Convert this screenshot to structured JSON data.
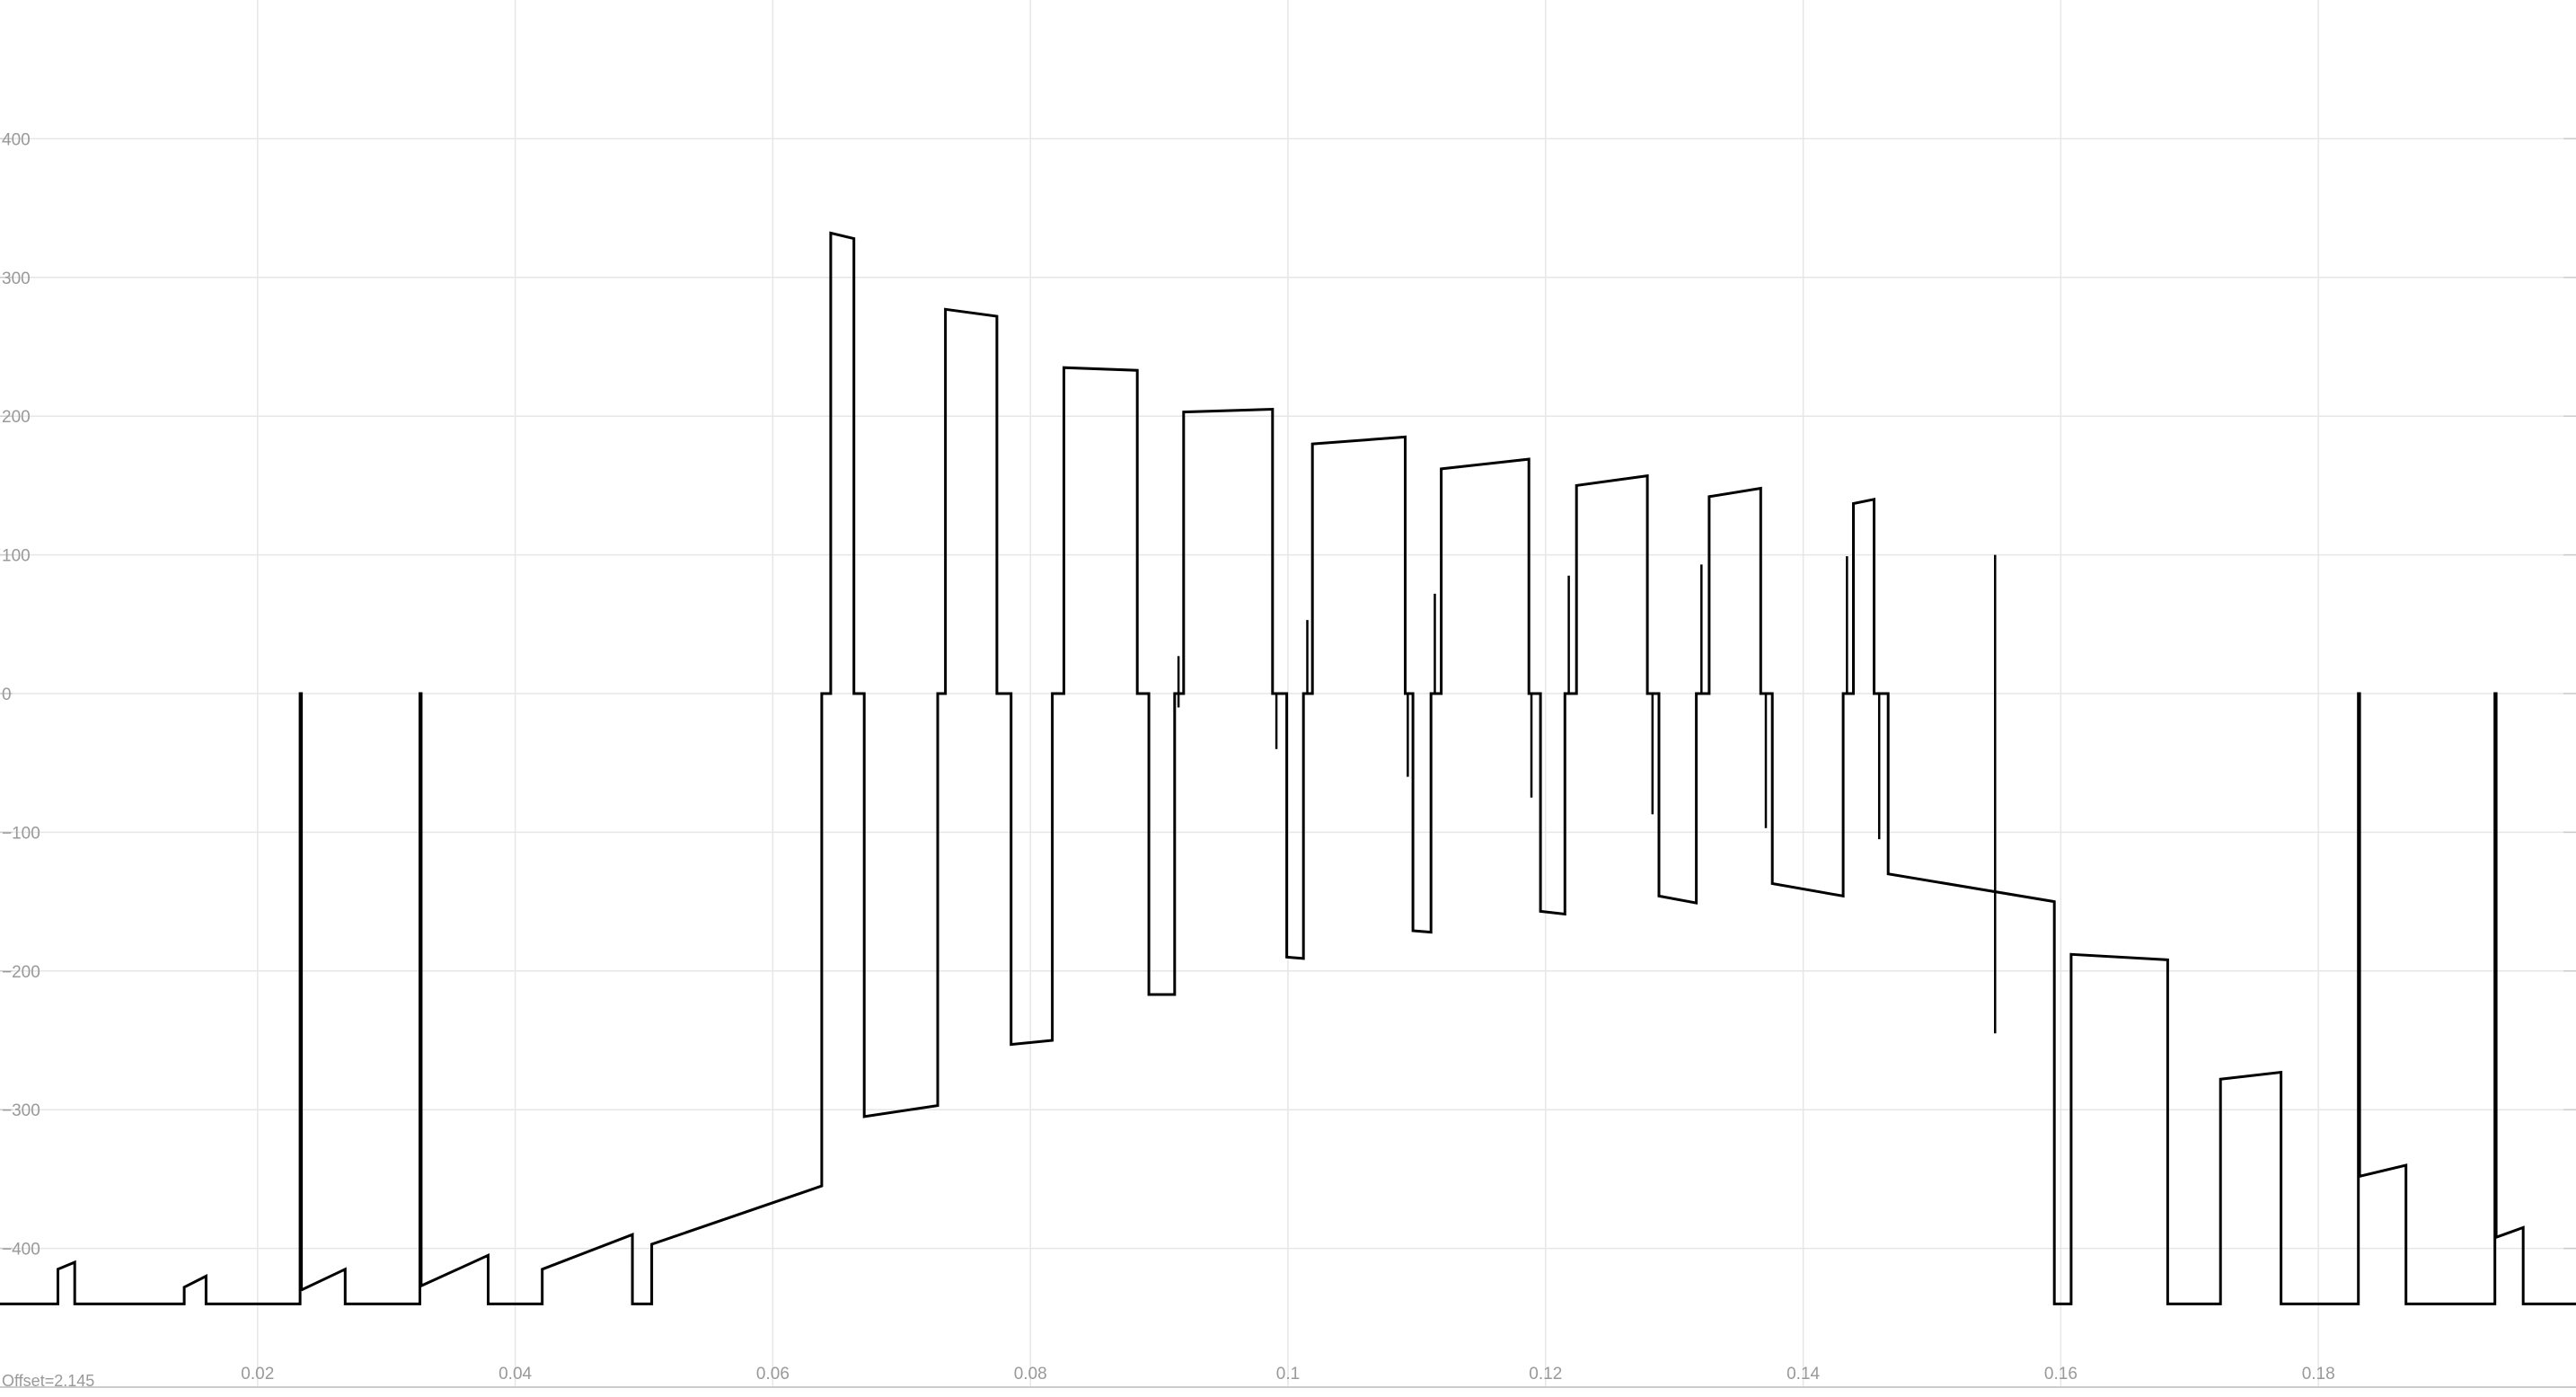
{
  "chart_data": {
    "type": "line",
    "title": "",
    "xlabel": "",
    "ylabel": "",
    "xlim": [
      0.0,
      0.2
    ],
    "ylim": [
      -500,
      500
    ],
    "x_ticks": [
      0.02,
      0.04,
      0.06,
      0.08,
      0.1,
      0.12,
      0.14,
      0.16,
      0.18
    ],
    "x_tick_labels": [
      "0.02",
      "0.04",
      "0.06",
      "0.08",
      "0.1",
      "0.12",
      "0.14",
      "0.16",
      "0.18"
    ],
    "y_ticks": [
      400,
      300,
      200,
      100,
      0,
      -100,
      -200,
      -300,
      -400
    ],
    "y_tick_labels": [
      "400",
      "300",
      "200",
      "100",
      "0",
      "−100",
      "−200",
      "−300",
      "−400"
    ],
    "grid": true,
    "offset_label": "Offset=2.145",
    "colors": {
      "line": "#000000",
      "grid": "#e6e6e6",
      "tick_text": "#999999",
      "axis": "#cccccc"
    },
    "series": [
      {
        "points": [
          [
            0.0,
            -440
          ],
          [
            0.0045,
            -440
          ],
          [
            0.0045,
            -415
          ],
          [
            0.0058,
            -410
          ],
          [
            0.0058,
            -440
          ],
          [
            0.0143,
            -440
          ],
          [
            0.0143,
            -428
          ],
          [
            0.016,
            -420
          ],
          [
            0.016,
            -440
          ],
          [
            0.0233,
            -440
          ],
          [
            0.0233,
            0
          ],
          [
            0.0234,
            0
          ],
          [
            0.0234,
            -430
          ],
          [
            0.0268,
            -415
          ],
          [
            0.0268,
            -440
          ],
          [
            0.0326,
            -440
          ],
          [
            0.0326,
            0
          ],
          [
            0.0327,
            0
          ],
          [
            0.0327,
            -427
          ],
          [
            0.0379,
            -405
          ],
          [
            0.0379,
            -440
          ],
          [
            0.0421,
            -440
          ],
          [
            0.0421,
            -415
          ],
          [
            0.0491,
            -390
          ],
          [
            0.0491,
            -440
          ],
          [
            0.0506,
            -440
          ],
          [
            0.0506,
            -397
          ],
          [
            0.0638,
            -355
          ],
          [
            0.0638,
            0
          ],
          [
            0.0645,
            0
          ],
          [
            0.0645,
            332
          ],
          [
            0.0663,
            328
          ],
          [
            0.0663,
            0
          ],
          [
            0.0671,
            0
          ],
          [
            0.0671,
            -305
          ],
          [
            0.0728,
            -297
          ],
          [
            0.0728,
            0
          ],
          [
            0.0734,
            0
          ],
          [
            0.0734,
            277
          ],
          [
            0.0774,
            272
          ],
          [
            0.0774,
            0
          ],
          [
            0.0785,
            0
          ],
          [
            0.0785,
            -253
          ],
          [
            0.0817,
            -250
          ],
          [
            0.0817,
            0
          ],
          [
            0.0826,
            0
          ],
          [
            0.0826,
            235
          ],
          [
            0.0883,
            233
          ],
          [
            0.0883,
            0
          ],
          [
            0.0892,
            0
          ],
          [
            0.0892,
            -217
          ],
          [
            0.0912,
            -217
          ],
          [
            0.0912,
            0
          ],
          [
            0.0919,
            0
          ],
          [
            0.0919,
            203
          ],
          [
            0.0988,
            205
          ],
          [
            0.0988,
            0
          ],
          [
            0.0999,
            0
          ],
          [
            0.0999,
            -190
          ],
          [
            0.1012,
            -191
          ],
          [
            0.1012,
            0
          ],
          [
            0.1019,
            0
          ],
          [
            0.1019,
            180
          ],
          [
            0.1091,
            185
          ],
          [
            0.1091,
            0
          ],
          [
            0.1097,
            0
          ],
          [
            0.1097,
            -171
          ],
          [
            0.1111,
            -172
          ],
          [
            0.1111,
            0
          ],
          [
            0.1119,
            0
          ],
          [
            0.1119,
            162
          ],
          [
            0.1187,
            169
          ],
          [
            0.1187,
            0
          ],
          [
            0.1196,
            0
          ],
          [
            0.1196,
            -157
          ],
          [
            0.1215,
            -159
          ],
          [
            0.1215,
            0
          ],
          [
            0.1224,
            0
          ],
          [
            0.1224,
            150
          ],
          [
            0.1279,
            157
          ],
          [
            0.1279,
            0
          ],
          [
            0.1288,
            0
          ],
          [
            0.1288,
            -146
          ],
          [
            0.1317,
            -151
          ],
          [
            0.1317,
            0
          ],
          [
            0.1327,
            0
          ],
          [
            0.1327,
            142
          ],
          [
            0.1367,
            148
          ],
          [
            0.1367,
            0
          ],
          [
            0.1376,
            0
          ],
          [
            0.1376,
            -137
          ],
          [
            0.1431,
            -146
          ],
          [
            0.1431,
            0
          ],
          [
            0.1439,
            0
          ],
          [
            0.1439,
            137
          ],
          [
            0.1455,
            140
          ],
          [
            0.1455,
            0
          ],
          [
            0.1466,
            0
          ],
          [
            0.1466,
            -130
          ],
          [
            0.1595,
            -150
          ],
          [
            0.1595,
            -440
          ],
          [
            0.1608,
            -440
          ],
          [
            0.1608,
            -188
          ],
          [
            0.1683,
            -192
          ],
          [
            0.1683,
            -440
          ],
          [
            0.1724,
            -440
          ],
          [
            0.1724,
            -278
          ],
          [
            0.1771,
            -273
          ],
          [
            0.1771,
            -440
          ],
          [
            0.1831,
            -440
          ],
          [
            0.1831,
            0
          ],
          [
            0.1832,
            0
          ],
          [
            0.1832,
            -348
          ],
          [
            0.1868,
            -340
          ],
          [
            0.1868,
            -440
          ],
          [
            0.1937,
            -440
          ],
          [
            0.1937,
            0
          ],
          [
            0.1938,
            0
          ],
          [
            0.1938,
            -392
          ],
          [
            0.1959,
            -385
          ],
          [
            0.1959,
            -440
          ],
          [
            0.2,
            -440
          ]
        ]
      }
    ],
    "spikes": [
      {
        "x": 0.0915,
        "y0": -10,
        "y1": 27
      },
      {
        "x": 0.0991,
        "y0": -40,
        "y1": 0
      },
      {
        "x": 0.1015,
        "y0": 0,
        "y1": 53
      },
      {
        "x": 0.1093,
        "y0": -60,
        "y1": 0
      },
      {
        "x": 0.1114,
        "y0": 0,
        "y1": 72
      },
      {
        "x": 0.1189,
        "y0": -75,
        "y1": 0
      },
      {
        "x": 0.1218,
        "y0": 0,
        "y1": 85
      },
      {
        "x": 0.1283,
        "y0": -87,
        "y1": 0
      },
      {
        "x": 0.1321,
        "y0": 0,
        "y1": 93
      },
      {
        "x": 0.1371,
        "y0": -97,
        "y1": 0
      },
      {
        "x": 0.1434,
        "y0": 0,
        "y1": 99
      },
      {
        "x": 0.1459,
        "y0": -105,
        "y1": 0
      },
      {
        "x": 0.1549,
        "y0": -245,
        "y1": 100
      }
    ]
  }
}
